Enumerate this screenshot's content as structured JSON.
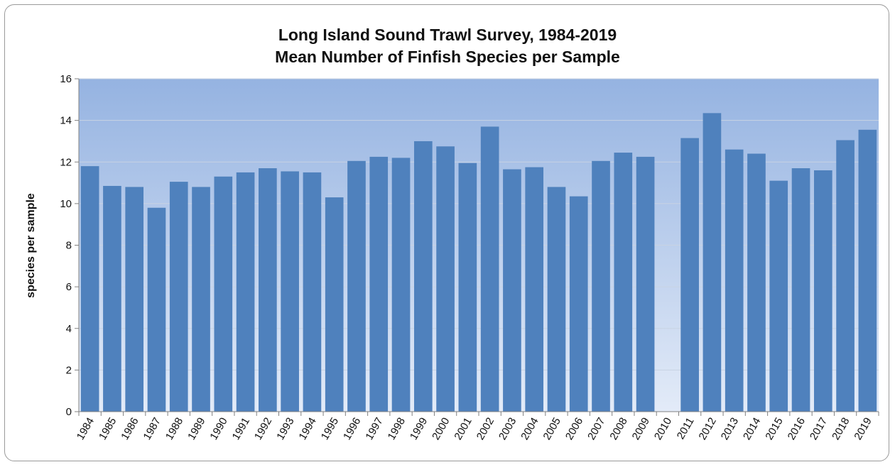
{
  "chart_data": {
    "type": "bar",
    "title": "Long Island Sound Trawl Survey, 1984-2019",
    "subtitle": "Mean Number of Finfish Species per Sample",
    "xlabel": "",
    "ylabel": "species per sample",
    "ylim": [
      0,
      16
    ],
    "yticks": [
      0,
      2,
      4,
      6,
      8,
      10,
      12,
      14,
      16
    ],
    "grid": true,
    "legend": "none",
    "colors": {
      "bar": "#4f81bd",
      "plot_bg_top": "#95b3e1",
      "plot_bg_bottom": "#e3ebf8",
      "gridline": "#c8d3e3",
      "axis": "#808080"
    },
    "categories": [
      "1984",
      "1985",
      "1986",
      "1987",
      "1988",
      "1989",
      "1990",
      "1991",
      "1992",
      "1993",
      "1994",
      "1995",
      "1996",
      "1997",
      "1998",
      "1999",
      "2000",
      "2001",
      "2002",
      "2003",
      "2004",
      "2005",
      "2006",
      "2007",
      "2008",
      "2009",
      "2010",
      "2011",
      "2012",
      "2013",
      "2014",
      "2015",
      "2016",
      "2017",
      "2018",
      "2019"
    ],
    "values": [
      11.8,
      10.85,
      10.8,
      9.8,
      11.05,
      10.8,
      11.3,
      11.5,
      11.7,
      11.55,
      11.5,
      10.3,
      12.05,
      12.25,
      12.2,
      13.0,
      12.75,
      11.95,
      13.7,
      11.65,
      11.75,
      10.8,
      10.35,
      12.05,
      12.45,
      12.25,
      null,
      13.15,
      14.35,
      12.6,
      12.4,
      11.1,
      11.7,
      11.6,
      13.05,
      13.55
    ]
  }
}
